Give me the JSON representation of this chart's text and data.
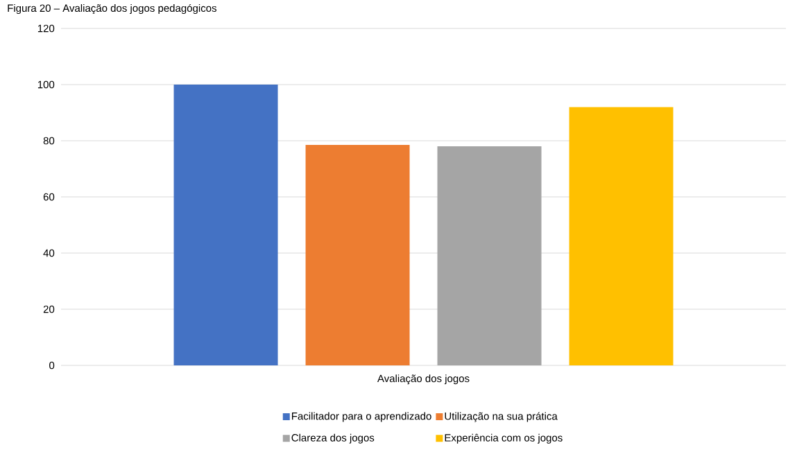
{
  "chart_data": {
    "type": "bar",
    "title": "Figura 20 – Avaliação dos jogos pedagógicos",
    "categories": [
      "Avaliação dos jogos"
    ],
    "series": [
      {
        "name": "Facilitador para o aprendizado",
        "color": "#4472c4",
        "values": [
          100
        ]
      },
      {
        "name": "Utilização na sua prática",
        "color": "#ed7d31",
        "values": [
          78.5
        ]
      },
      {
        "name": "Clareza dos jogos",
        "color": "#a5a5a5",
        "values": [
          78
        ]
      },
      {
        "name": "Experiência com os jogos",
        "color": "#ffc000",
        "values": [
          92
        ]
      }
    ],
    "ylim": [
      0,
      120
    ],
    "yticks": [
      0,
      20,
      40,
      60,
      80,
      100,
      120
    ],
    "grid": "y",
    "legend": "bottom"
  }
}
